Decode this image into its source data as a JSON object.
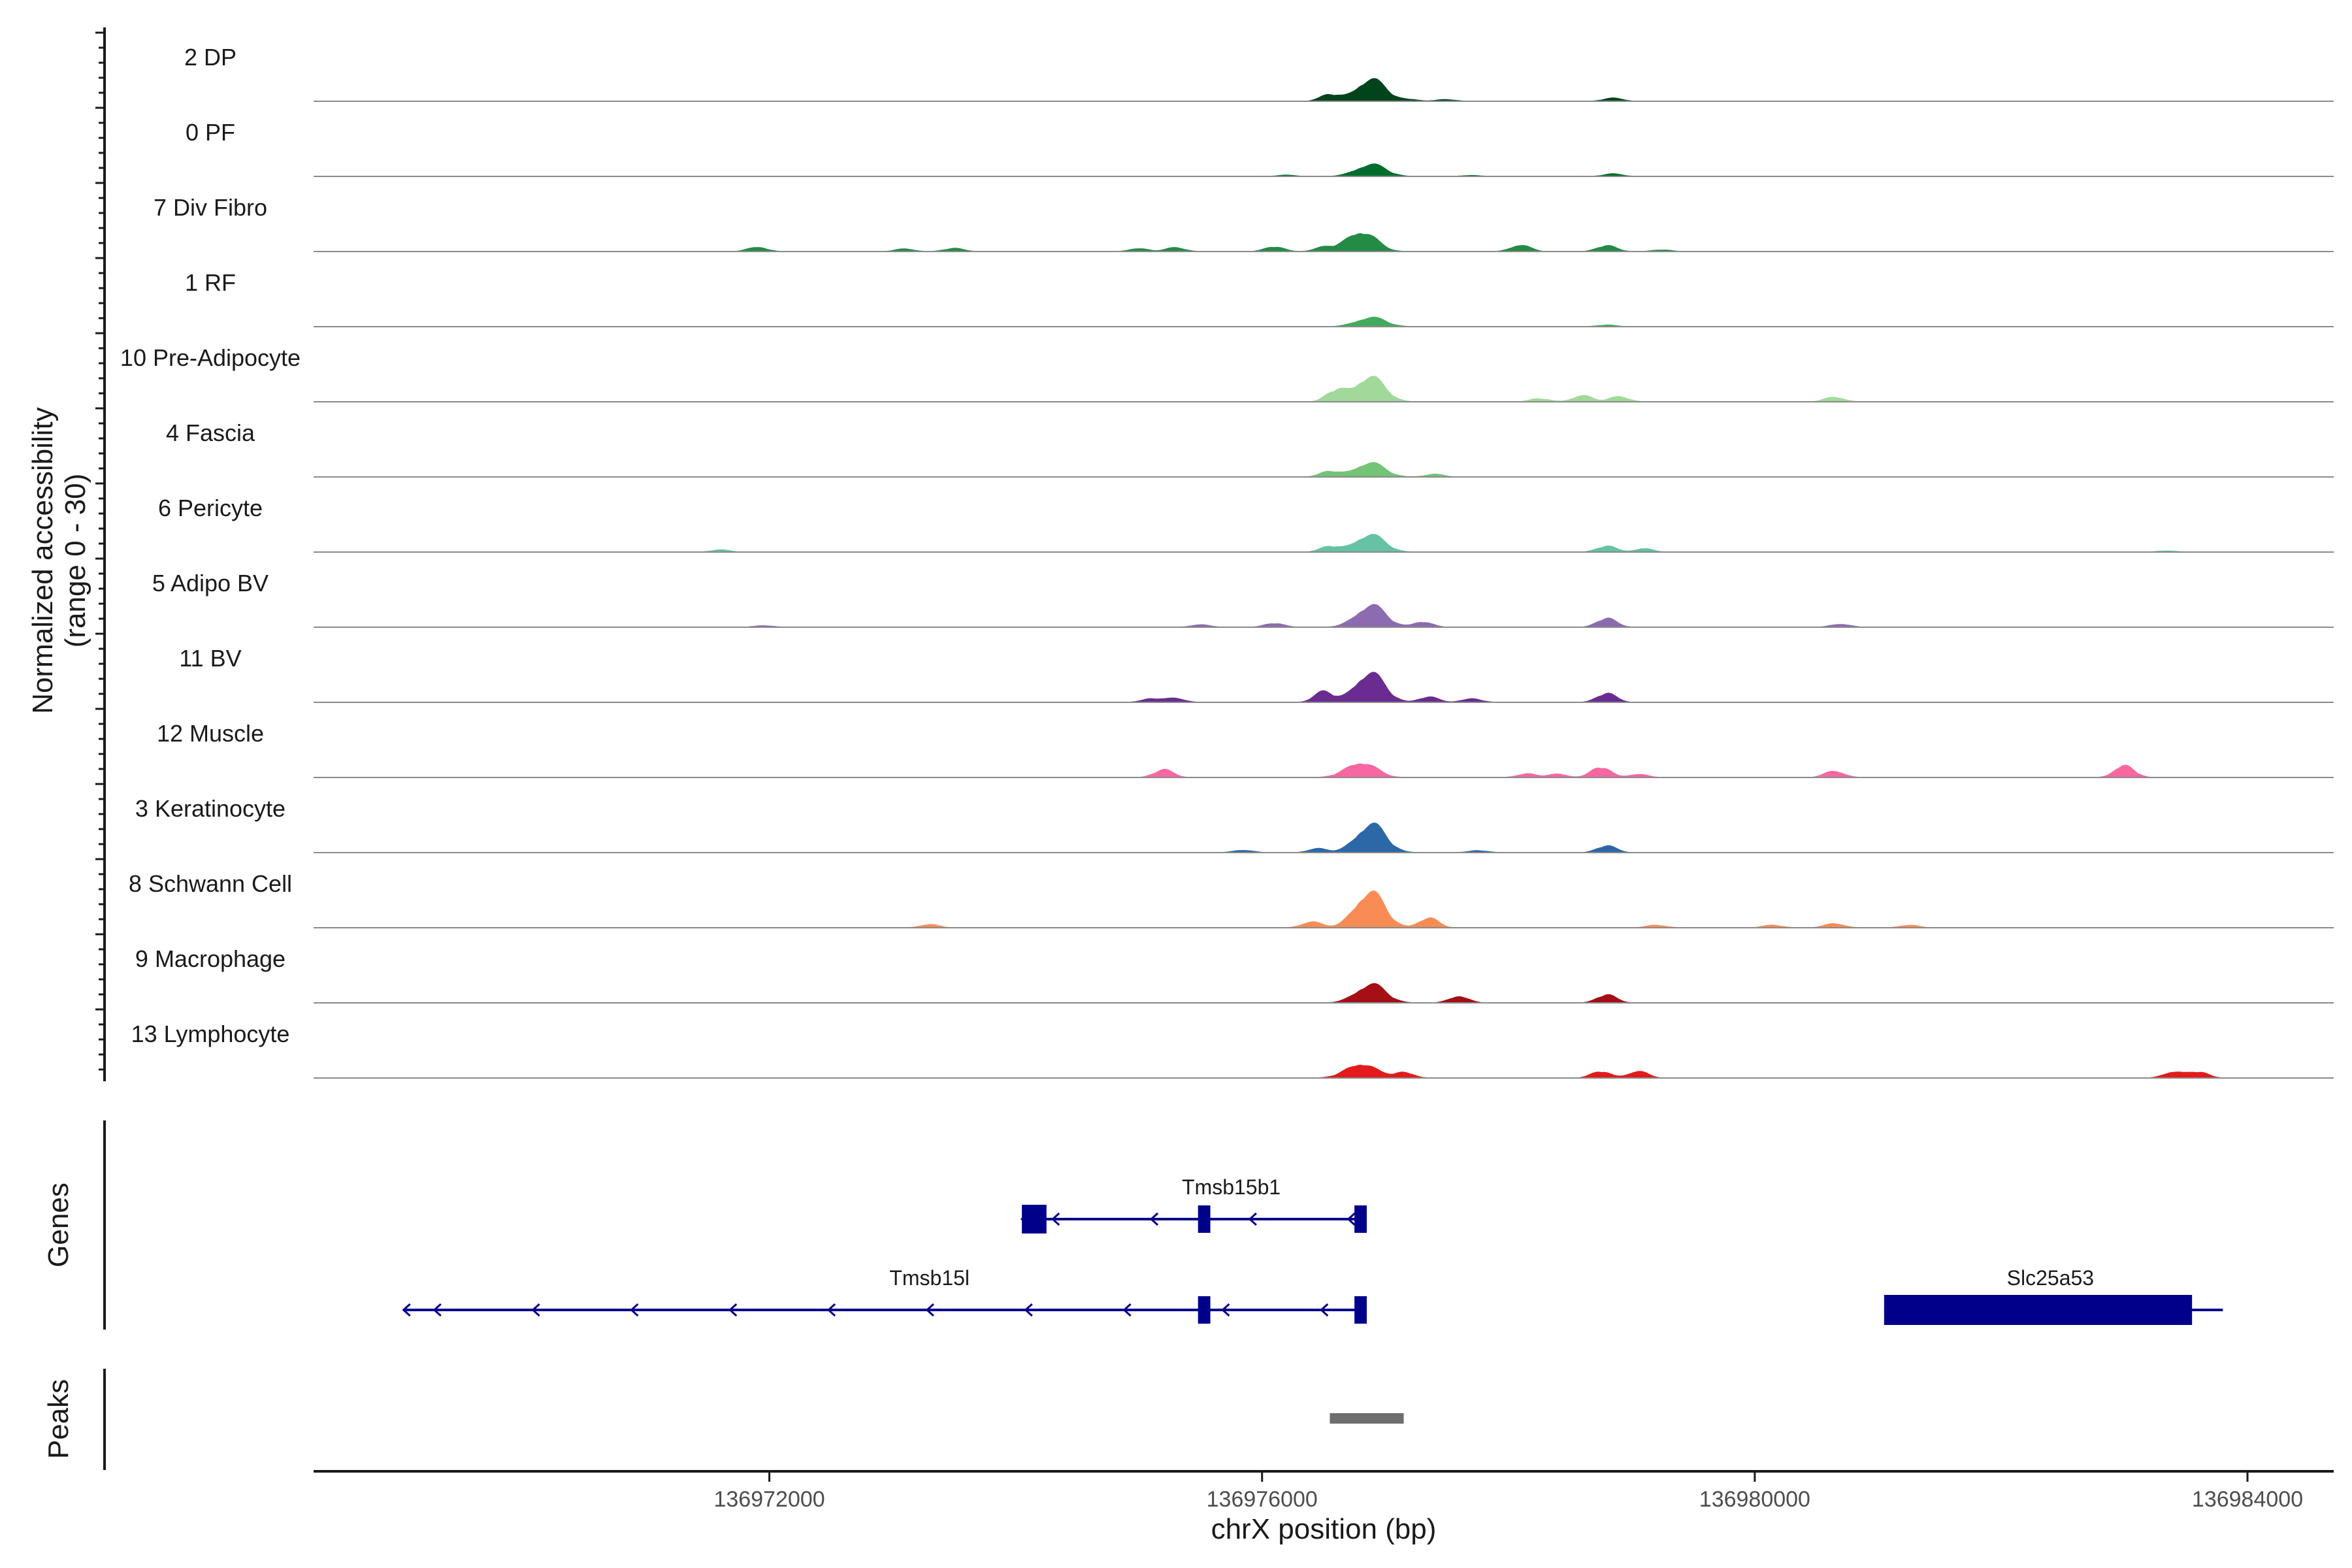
{
  "chart_data": {
    "type": "area",
    "title": "",
    "ylabel": "Normalized accessibility\n(range 0 - 30)",
    "y_range": [
      0,
      30
    ],
    "xlabel": "chrX position (bp)",
    "xlim": [
      136968300,
      136984700
    ],
    "x_ticks": [
      136972000,
      136976000,
      136980000,
      136984000
    ],
    "x_tick_labels": [
      "136972000",
      "136976000",
      "136980000",
      "136984000"
    ],
    "tracks": [
      {
        "name": "2 DP",
        "color": "#00441b",
        "peaks": [
          [
            136976880,
            1.0
          ],
          [
            136976550,
            0.3
          ],
          [
            136978850,
            0.15
          ],
          [
            136977200,
            0.08
          ],
          [
            136977500,
            0.08
          ]
        ]
      },
      {
        "name": "0 PF",
        "color": "#006d2c",
        "peaks": [
          [
            136976880,
            0.55
          ],
          [
            136978850,
            0.12
          ],
          [
            136976200,
            0.06
          ],
          [
            136977700,
            0.05
          ]
        ]
      },
      {
        "name": "7 Div Fibro",
        "color": "#238b45",
        "peaks": [
          [
            136976800,
            0.95
          ],
          [
            136971900,
            0.22
          ],
          [
            136978100,
            0.32
          ],
          [
            136978800,
            0.28
          ],
          [
            136975000,
            0.15
          ],
          [
            136975300,
            0.18
          ],
          [
            136973100,
            0.12
          ],
          [
            136973500,
            0.15
          ],
          [
            136976100,
            0.22
          ],
          [
            136976500,
            0.18
          ],
          [
            136979250,
            0.08
          ]
        ]
      },
      {
        "name": "1 RF",
        "color": "#41ab5d",
        "peaks": [
          [
            136976880,
            0.42
          ],
          [
            136978800,
            0.08
          ]
        ]
      },
      {
        "name": "10 Pre-Adipocyte",
        "color": "#a1d99b",
        "peaks": [
          [
            136976870,
            1.15
          ],
          [
            136976600,
            0.5
          ],
          [
            136978600,
            0.3
          ],
          [
            136978900,
            0.25
          ],
          [
            136980650,
            0.22
          ],
          [
            136978250,
            0.15
          ]
        ]
      },
      {
        "name": "4 Fascia",
        "color": "#74c476",
        "peaks": [
          [
            136976870,
            0.65
          ],
          [
            136976550,
            0.25
          ],
          [
            136977400,
            0.12
          ]
        ]
      },
      {
        "name": "6 Pericyte",
        "color": "#66c2a4",
        "peaks": [
          [
            136976870,
            0.8
          ],
          [
            136978800,
            0.28
          ],
          [
            136976550,
            0.25
          ],
          [
            136979100,
            0.15
          ],
          [
            136971600,
            0.1
          ],
          [
            136983350,
            0.06
          ]
        ]
      },
      {
        "name": "5 Adipo BV",
        "color": "#8c6bb1",
        "peaks": [
          [
            136976880,
            1.0
          ],
          [
            136978800,
            0.42
          ],
          [
            136977300,
            0.25
          ],
          [
            136976100,
            0.18
          ],
          [
            136980700,
            0.15
          ],
          [
            136975500,
            0.12
          ],
          [
            136971950,
            0.08
          ]
        ]
      },
      {
        "name": "11 BV",
        "color": "#6a2c91",
        "peaks": [
          [
            136976870,
            1.35
          ],
          [
            136976500,
            0.48
          ],
          [
            136978800,
            0.42
          ],
          [
            136977350,
            0.25
          ],
          [
            136975100,
            0.18
          ],
          [
            136977700,
            0.18
          ],
          [
            136975300,
            0.18
          ]
        ]
      },
      {
        "name": "12 Muscle",
        "color": "#f768a1",
        "peaks": [
          [
            136976800,
            0.72
          ],
          [
            136983000,
            0.6
          ],
          [
            136978750,
            0.48
          ],
          [
            136975200,
            0.35
          ],
          [
            136980650,
            0.3
          ],
          [
            136978150,
            0.18
          ],
          [
            136979050,
            0.15
          ],
          [
            136978400,
            0.15
          ]
        ]
      },
      {
        "name": "3 Keratinocyte",
        "color": "#2c68a8",
        "peaks": [
          [
            136976880,
            1.3
          ],
          [
            136978800,
            0.32
          ],
          [
            136976450,
            0.18
          ],
          [
            136975850,
            0.12
          ],
          [
            136977750,
            0.1
          ]
        ]
      },
      {
        "name": "8 Schwann Cell",
        "color": "#f98c55",
        "peaks": [
          [
            136976870,
            1.65
          ],
          [
            136977350,
            0.45
          ],
          [
            136976400,
            0.28
          ],
          [
            136980650,
            0.2
          ],
          [
            136973300,
            0.15
          ],
          [
            136979200,
            0.12
          ],
          [
            136981250,
            0.12
          ],
          [
            136980150,
            0.12
          ]
        ]
      },
      {
        "name": "9 Macrophage",
        "color": "#a50f15",
        "peaks": [
          [
            136976880,
            0.85
          ],
          [
            136977600,
            0.32
          ],
          [
            136978800,
            0.38
          ]
        ]
      },
      {
        "name": "13 Lymphocyte",
        "color": "#e41a1c",
        "peaks": [
          [
            136976800,
            0.68
          ],
          [
            136977150,
            0.28
          ],
          [
            136978750,
            0.3
          ],
          [
            136979050,
            0.32
          ],
          [
            136983400,
            0.3
          ],
          [
            136983600,
            0.28
          ]
        ]
      }
    ],
    "genes_title": "Genes",
    "genes": [
      {
        "name": "Tmsb15b1",
        "strand": "-",
        "start": 136974050,
        "end": 136976850,
        "exons": [
          [
            136974050,
            136974250
          ],
          [
            136975480,
            136975580
          ],
          [
            136976750,
            136976850
          ]
        ],
        "row": 0
      },
      {
        "name": "Tmsb15l",
        "strand": "-",
        "start": 136969030,
        "end": 136976850,
        "exons": [
          [
            136975480,
            136975580
          ],
          [
            136976750,
            136976850
          ]
        ],
        "row": 1
      },
      {
        "name": "Slc25a53",
        "strand": "+",
        "start": 136981050,
        "end": 136983800,
        "exons": [
          [
            136981050,
            136983550
          ]
        ],
        "row": 1
      }
    ],
    "peaks_title": "Peaks",
    "peak_regions": [
      [
        136976550,
        136977150
      ]
    ]
  }
}
